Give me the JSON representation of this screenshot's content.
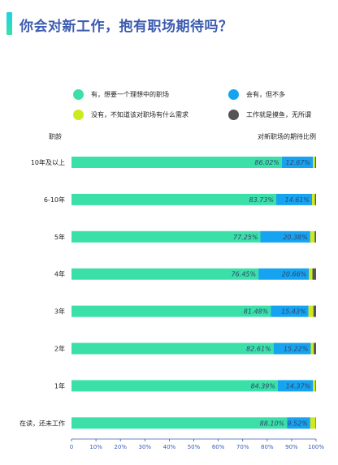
{
  "title": "你会对新工作，抱有职场期待吗？",
  "colors": {
    "title_bar": "#1fd0e8",
    "ideal": "#3ae0a8",
    "some": "#16a3f0",
    "none": "#cdea1c",
    "slack": "#555555",
    "axis": "#3b5bb0"
  },
  "legend": [
    {
      "label": "有，想要一个理想中的职场",
      "color": "#3ae0a8"
    },
    {
      "label": "会有，但不多",
      "color": "#16a3f0"
    },
    {
      "label": "没有，不知道该对职场有什么需求",
      "color": "#cdea1c"
    },
    {
      "label": "工作就是摸鱼，无所谓",
      "color": "#555555"
    }
  ],
  "chart_data": {
    "type": "bar",
    "orientation": "horizontal",
    "stacked": true,
    "y_header": "职龄",
    "x_header": "对新职场的期待比例",
    "categories": [
      "10年及以上",
      "6-10年",
      "5年",
      "4年",
      "3年",
      "2年",
      "1年",
      "在读，还未工作"
    ],
    "series": [
      {
        "name": "有，想要一个理想中的职场",
        "values": [
          86.02,
          83.73,
          77.25,
          76.45,
          81.48,
          82.61,
          84.39,
          88.1
        ],
        "labels": [
          "86.02%",
          "83.73%",
          "77.25%",
          "76.45%",
          "81.48%",
          "82.61%",
          "84.39%",
          "88.10%"
        ]
      },
      {
        "name": "会有，但不多",
        "values": [
          12.67,
          14.61,
          20.38,
          20.66,
          15.43,
          15.22,
          14.37,
          9.52
        ],
        "labels": [
          "12.67%",
          "14.61%",
          "20.38%",
          "20.66%",
          "15.43%",
          "15.22%",
          "14.37%",
          "9.52%"
        ]
      },
      {
        "name": "没有，不知道该对职场有什么需求",
        "values": [
          0.9,
          1.2,
          1.8,
          1.4,
          2.0,
          1.2,
          1.0,
          2.2
        ],
        "labels": []
      },
      {
        "name": "工作就是摸鱼，无所谓",
        "values": [
          0.41,
          0.46,
          0.57,
          1.49,
          1.09,
          0.97,
          0.24,
          0.18
        ],
        "labels": []
      }
    ],
    "xlim": [
      0,
      100
    ],
    "xticks": [
      "0",
      "10%",
      "20%",
      "30%",
      "40%",
      "50%",
      "60%",
      "70%",
      "80%",
      "90%",
      "100%"
    ],
    "grid": false,
    "legend_position": "top"
  }
}
